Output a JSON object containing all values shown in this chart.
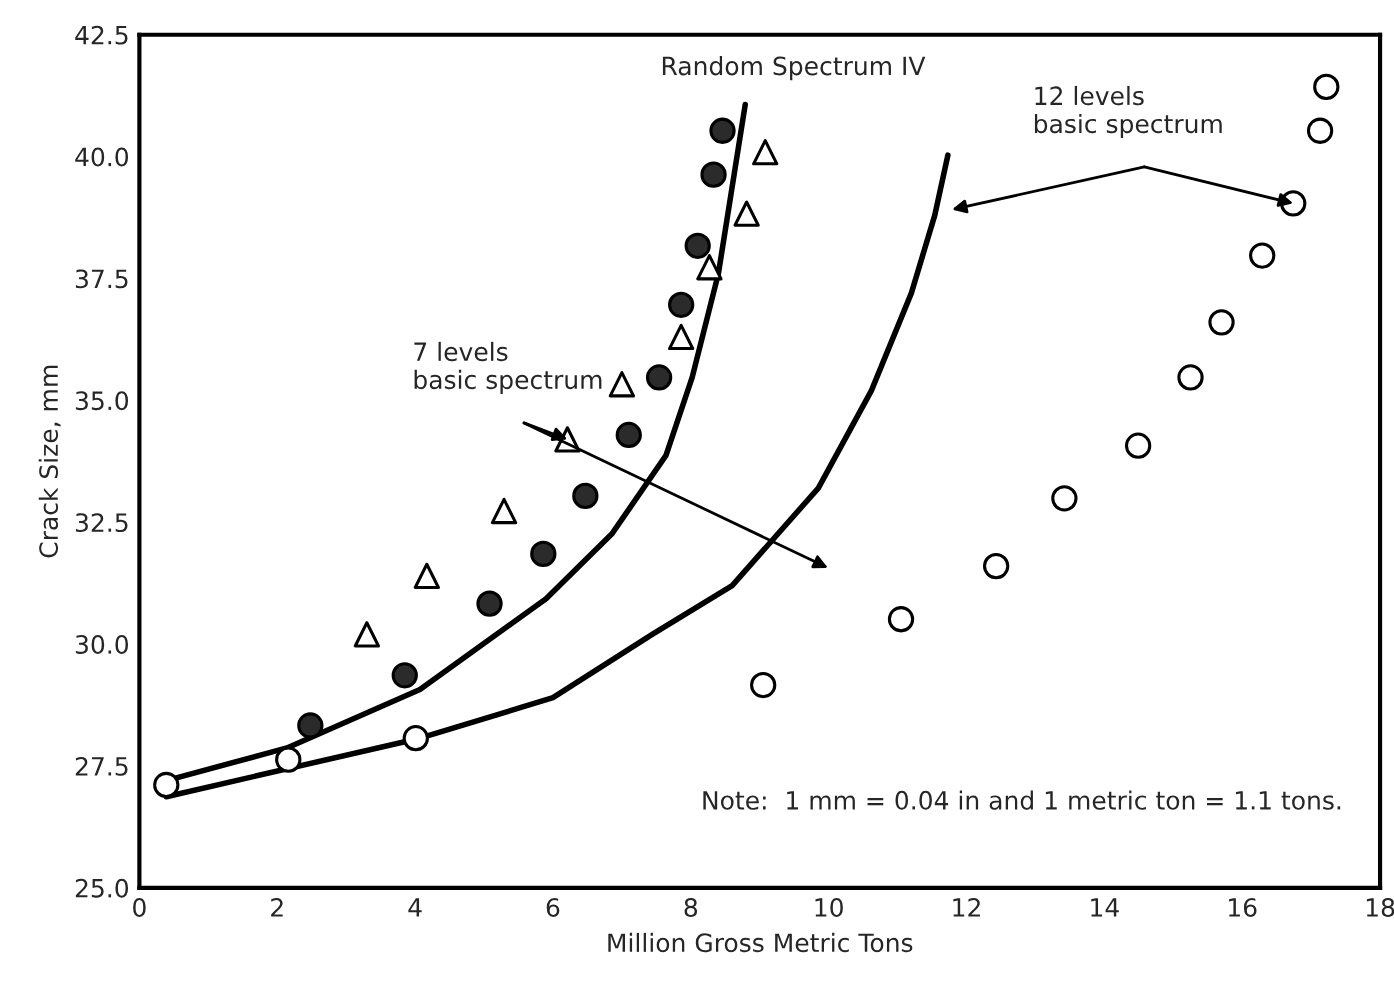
{
  "chart_data": {
    "type": "scatter",
    "xlabel": "Million Gross Metric Tons",
    "ylabel": "Crack Size, mm",
    "xlim": [
      0,
      18
    ],
    "ylim": [
      25,
      42.5
    ],
    "xticks": [
      0,
      2,
      4,
      6,
      8,
      10,
      12,
      14,
      16,
      18
    ],
    "yticks": [
      {
        "value": 25,
        "label": "25.0"
      },
      {
        "value": 27.5,
        "label": "27.5"
      },
      {
        "value": 30,
        "label": "30.0"
      },
      {
        "value": 32.5,
        "label": "32.5"
      },
      {
        "value": 35,
        "label": "35.0"
      },
      {
        "value": 37.5,
        "label": "37.5"
      },
      {
        "value": 40,
        "label": "40.0"
      },
      {
        "value": 42.5,
        "label": "42.5"
      }
    ],
    "grid": false,
    "legend": false,
    "series": [
      {
        "marker": "circle",
        "color": "#2b2b2b",
        "x": [
          2.48,
          3.85,
          5.08,
          5.86,
          6.47,
          7.1,
          7.54,
          7.86,
          8.1,
          8.33,
          8.46
        ],
        "values": [
          28.33,
          29.36,
          30.83,
          31.85,
          33.04,
          34.29,
          35.47,
          36.96,
          38.17,
          39.63,
          40.53
        ]
      },
      {
        "marker": "triangle",
        "color": "#ffffff",
        "x": [
          3.3,
          4.17,
          5.29,
          6.21,
          7.0,
          7.86,
          8.27,
          8.81,
          9.08
        ],
        "values": [
          30.2,
          31.4,
          32.73,
          34.2,
          35.33,
          36.3,
          37.73,
          38.83,
          40.09
        ]
      },
      {
        "marker": "circle",
        "color": "#ffffff",
        "x": [
          0.39,
          2.16,
          4.01,
          9.05,
          11.05,
          12.43,
          13.42,
          14.49,
          15.25,
          15.7,
          16.29,
          16.74,
          17.13,
          17.22
        ],
        "values": [
          27.11,
          27.63,
          28.07,
          29.16,
          30.51,
          31.6,
          32.99,
          34.07,
          35.47,
          36.6,
          37.97,
          39.04,
          40.53,
          41.43
        ]
      },
      {
        "type": "line",
        "marker": "none",
        "color": "#000000",
        "x": [
          0.39,
          2.14,
          4.07,
          5.9,
          6.86,
          7.64,
          8.02,
          8.4,
          8.79
        ],
        "values": [
          27.2,
          27.87,
          29.07,
          30.93,
          32.27,
          33.87,
          35.47,
          37.6,
          41.07
        ]
      },
      {
        "type": "line",
        "marker": "none",
        "color": "#000000",
        "x": [
          0.39,
          4.07,
          6.0,
          7.44,
          8.6,
          9.85,
          10.62,
          11.2,
          11.54,
          11.73
        ],
        "values": [
          26.87,
          28.07,
          28.9,
          30.2,
          31.2,
          33.2,
          35.2,
          37.2,
          38.8,
          40.03
        ]
      }
    ],
    "annotations": [
      "Random Spectrum IV",
      {
        "text": "7 levels\nbasic spectrum",
        "x": 6.21,
        "y": 34.2
      },
      {
        "text": "12 levels\nbasic spectrum",
        "x": 16.74,
        "y": 39.04
      },
      "Note:  1 mm = 0.04 in and 1 metric ton = 1.1 tons."
    ]
  }
}
